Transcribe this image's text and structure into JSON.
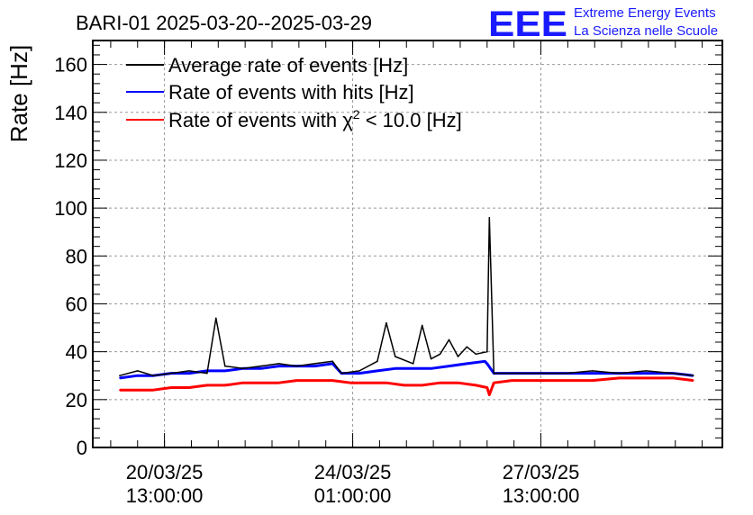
{
  "chart_data": {
    "type": "line",
    "title": "BARI-01 2025-03-20--2025-03-29",
    "ylabel": "Rate [Hz]",
    "xlabel": "",
    "ylim": [
      0,
      170
    ],
    "yticks": [
      0,
      20,
      40,
      60,
      80,
      100,
      120,
      140,
      160
    ],
    "xlim": [
      "2025-03-19 05:00",
      "2025-03-30 22:00"
    ],
    "xticks": [
      {
        "date": "2025-03-20 13:00",
        "line1": "20/03/25",
        "line2": "13:00:00"
      },
      {
        "date": "2025-03-24 01:00",
        "line1": "24/03/25",
        "line2": "01:00:00"
      },
      {
        "date": "2025-03-27 13:00",
        "line1": "27/03/25",
        "line2": "13:00:00"
      }
    ],
    "grid": true,
    "legend_position": "top-left",
    "series": [
      {
        "name": "Average rate of events [Hz]",
        "color": "#000000",
        "x": [
          "2025-03-19 17:00",
          "2025-03-20 01:00",
          "2025-03-20 08:00",
          "2025-03-20 16:00",
          "2025-03-21 00:00",
          "2025-03-21 08:00",
          "2025-03-21 12:00",
          "2025-03-21 16:00",
          "2025-03-22 00:00",
          "2025-03-22 08:00",
          "2025-03-22 16:00",
          "2025-03-23 00:00",
          "2025-03-23 08:00",
          "2025-03-23 16:00",
          "2025-03-23 20:00",
          "2025-03-24 04:00",
          "2025-03-24 12:00",
          "2025-03-24 16:00",
          "2025-03-24 20:00",
          "2025-03-25 04:00",
          "2025-03-25 08:00",
          "2025-03-25 12:00",
          "2025-03-25 16:00",
          "2025-03-25 20:00",
          "2025-03-26 00:00",
          "2025-03-26 04:00",
          "2025-03-26 08:00",
          "2025-03-26 13:00",
          "2025-03-26 14:00",
          "2025-03-26 16:00",
          "2025-03-27 00:00",
          "2025-03-27 12:00",
          "2025-03-28 00:00",
          "2025-03-28 12:00",
          "2025-03-29 00:00",
          "2025-03-29 12:00",
          "2025-03-30 00:00",
          "2025-03-30 09:00"
        ],
        "y": [
          30,
          32,
          30,
          31,
          32,
          31,
          54,
          34,
          33,
          34,
          35,
          34,
          35,
          36,
          31,
          32,
          36,
          52,
          38,
          35,
          51,
          37,
          39,
          45,
          38,
          42,
          39,
          40,
          96,
          31,
          31,
          31,
          31,
          32,
          31,
          32,
          31,
          30
        ]
      },
      {
        "name": "Rate of events with hits [Hz]",
        "color": "#0000ff",
        "x": [
          "2025-03-19 17:00",
          "2025-03-20 01:00",
          "2025-03-20 08:00",
          "2025-03-20 16:00",
          "2025-03-21 00:00",
          "2025-03-21 08:00",
          "2025-03-21 16:00",
          "2025-03-22 00:00",
          "2025-03-22 08:00",
          "2025-03-22 16:00",
          "2025-03-23 00:00",
          "2025-03-23 08:00",
          "2025-03-23 16:00",
          "2025-03-23 20:00",
          "2025-03-24 04:00",
          "2025-03-24 12:00",
          "2025-03-24 20:00",
          "2025-03-25 04:00",
          "2025-03-25 12:00",
          "2025-03-25 20:00",
          "2025-03-26 04:00",
          "2025-03-26 12:00",
          "2025-03-26 13:00",
          "2025-03-26 16:00",
          "2025-03-27 00:00",
          "2025-03-27 12:00",
          "2025-03-28 00:00",
          "2025-03-28 12:00",
          "2025-03-29 00:00",
          "2025-03-29 12:00",
          "2025-03-30 00:00",
          "2025-03-30 09:00"
        ],
        "y": [
          29,
          30,
          30,
          31,
          31,
          32,
          32,
          33,
          33,
          34,
          34,
          34,
          35,
          31,
          31,
          32,
          33,
          33,
          33,
          34,
          35,
          36,
          35,
          31,
          31,
          31,
          31,
          31,
          31,
          31,
          31,
          30
        ]
      },
      {
        "name": "Rate of events with χ² < 10.0 [Hz]",
        "color": "#ff0000",
        "x": [
          "2025-03-19 17:00",
          "2025-03-20 01:00",
          "2025-03-20 08:00",
          "2025-03-20 16:00",
          "2025-03-21 00:00",
          "2025-03-21 08:00",
          "2025-03-21 16:00",
          "2025-03-22 00:00",
          "2025-03-22 08:00",
          "2025-03-22 16:00",
          "2025-03-23 00:00",
          "2025-03-23 08:00",
          "2025-03-23 16:00",
          "2025-03-24 00:00",
          "2025-03-24 08:00",
          "2025-03-24 16:00",
          "2025-03-25 00:00",
          "2025-03-25 08:00",
          "2025-03-25 16:00",
          "2025-03-26 00:00",
          "2025-03-26 08:00",
          "2025-03-26 13:00",
          "2025-03-26 14:00",
          "2025-03-26 16:00",
          "2025-03-27 00:00",
          "2025-03-27 12:00",
          "2025-03-28 00:00",
          "2025-03-28 12:00",
          "2025-03-29 00:00",
          "2025-03-29 12:00",
          "2025-03-30 00:00",
          "2025-03-30 09:00"
        ],
        "y": [
          24,
          24,
          24,
          25,
          25,
          26,
          26,
          27,
          27,
          27,
          28,
          28,
          28,
          27,
          27,
          27,
          26,
          26,
          27,
          27,
          26,
          25,
          22,
          27,
          28,
          28,
          28,
          28,
          29,
          29,
          29,
          28
        ]
      }
    ]
  },
  "legend": [
    {
      "label": "Average rate of events [Hz]",
      "color": "#000000"
    },
    {
      "label": "Rate of events with hits [Hz]",
      "color": "#0000ff"
    },
    {
      "label_prefix": "Rate of events with ",
      "label_chi": "χ",
      "label_sup": "2",
      "label_suffix": " < 10.0 [Hz]",
      "color": "#ff0000"
    }
  ],
  "logo": {
    "letters": "EEE",
    "line1": "Extreme Energy Events",
    "line2": "La Scienza nelle Scuole",
    "color": "#1a1aff"
  }
}
